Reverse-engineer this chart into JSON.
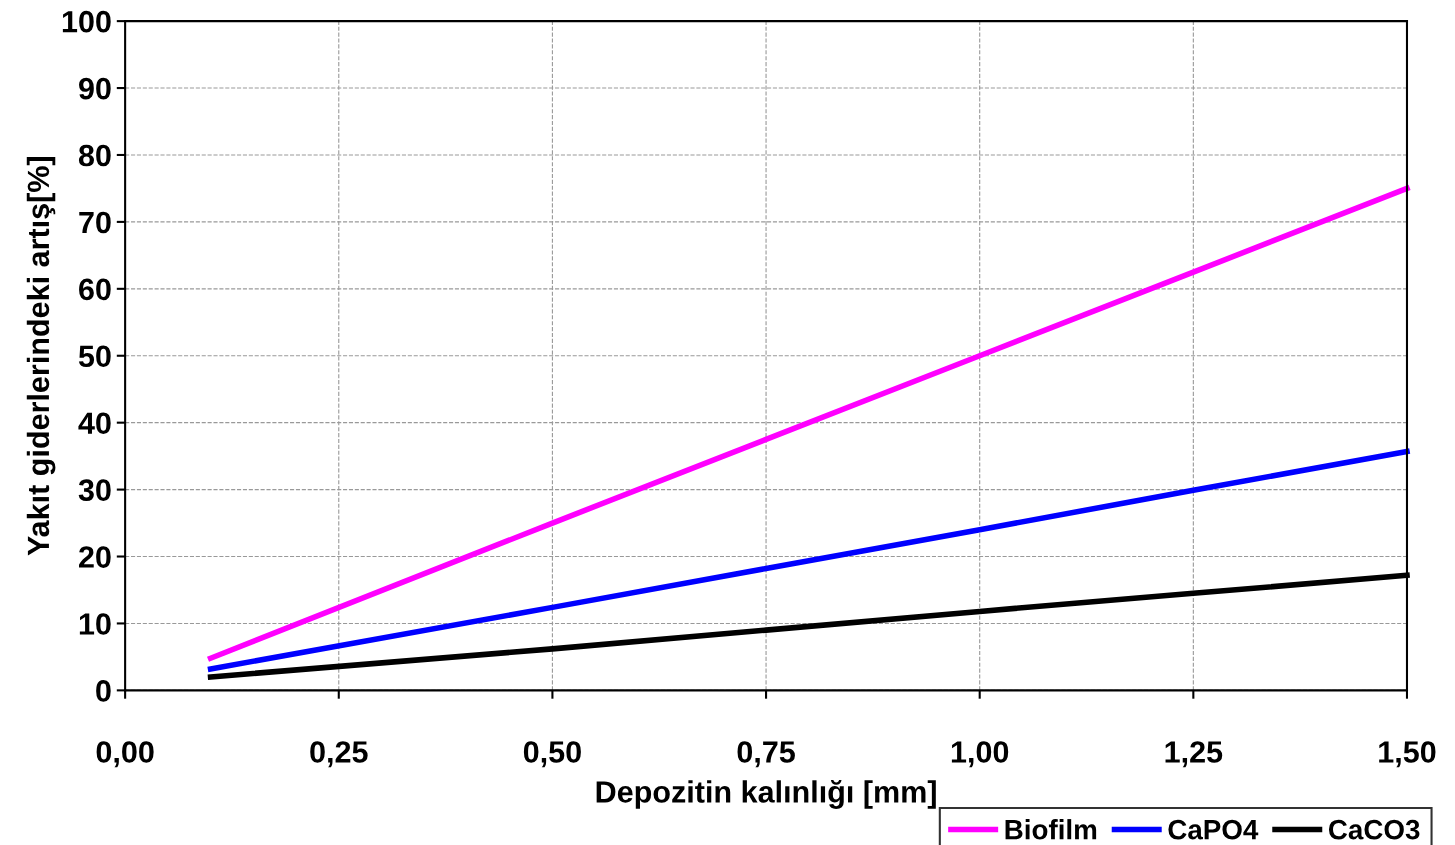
{
  "chart_data": {
    "type": "line",
    "xlabel": "Depozitin kalınlığı [mm]",
    "ylabel": "Yakıt giderlerindeki artış[%]",
    "x": [
      0.1,
      0.5,
      0.75,
      1.0,
      1.25,
      1.5
    ],
    "series": [
      {
        "name": "Biofilm",
        "color": "#ff00ff",
        "values": [
          4.8,
          25,
          37.5,
          50,
          62.5,
          75
        ]
      },
      {
        "name": "CaPO4",
        "color": "#0000ff",
        "values": [
          3.2,
          12.4,
          18.2,
          24,
          29.9,
          35.7
        ]
      },
      {
        "name": "CaCO3",
        "color": "#000000",
        "values": [
          2,
          6.2,
          9,
          11.8,
          14.5,
          17.2
        ]
      }
    ],
    "xlim": [
      0,
      1.5
    ],
    "ylim": [
      0,
      100
    ],
    "xticks": [
      {
        "value": 0,
        "label": "0,00"
      },
      {
        "value": 0.25,
        "label": "0,25"
      },
      {
        "value": 0.5,
        "label": "0,50"
      },
      {
        "value": 0.75,
        "label": "0,75"
      },
      {
        "value": 1.0,
        "label": "1,00"
      },
      {
        "value": 1.25,
        "label": "1,25"
      },
      {
        "value": 1.5,
        "label": "1,50"
      }
    ],
    "yticks": [
      0,
      10,
      20,
      30,
      40,
      50,
      60,
      70,
      80,
      90,
      100
    ],
    "grid": true,
    "legend": "bottom right",
    "marker": "none",
    "line_style": "solid"
  }
}
